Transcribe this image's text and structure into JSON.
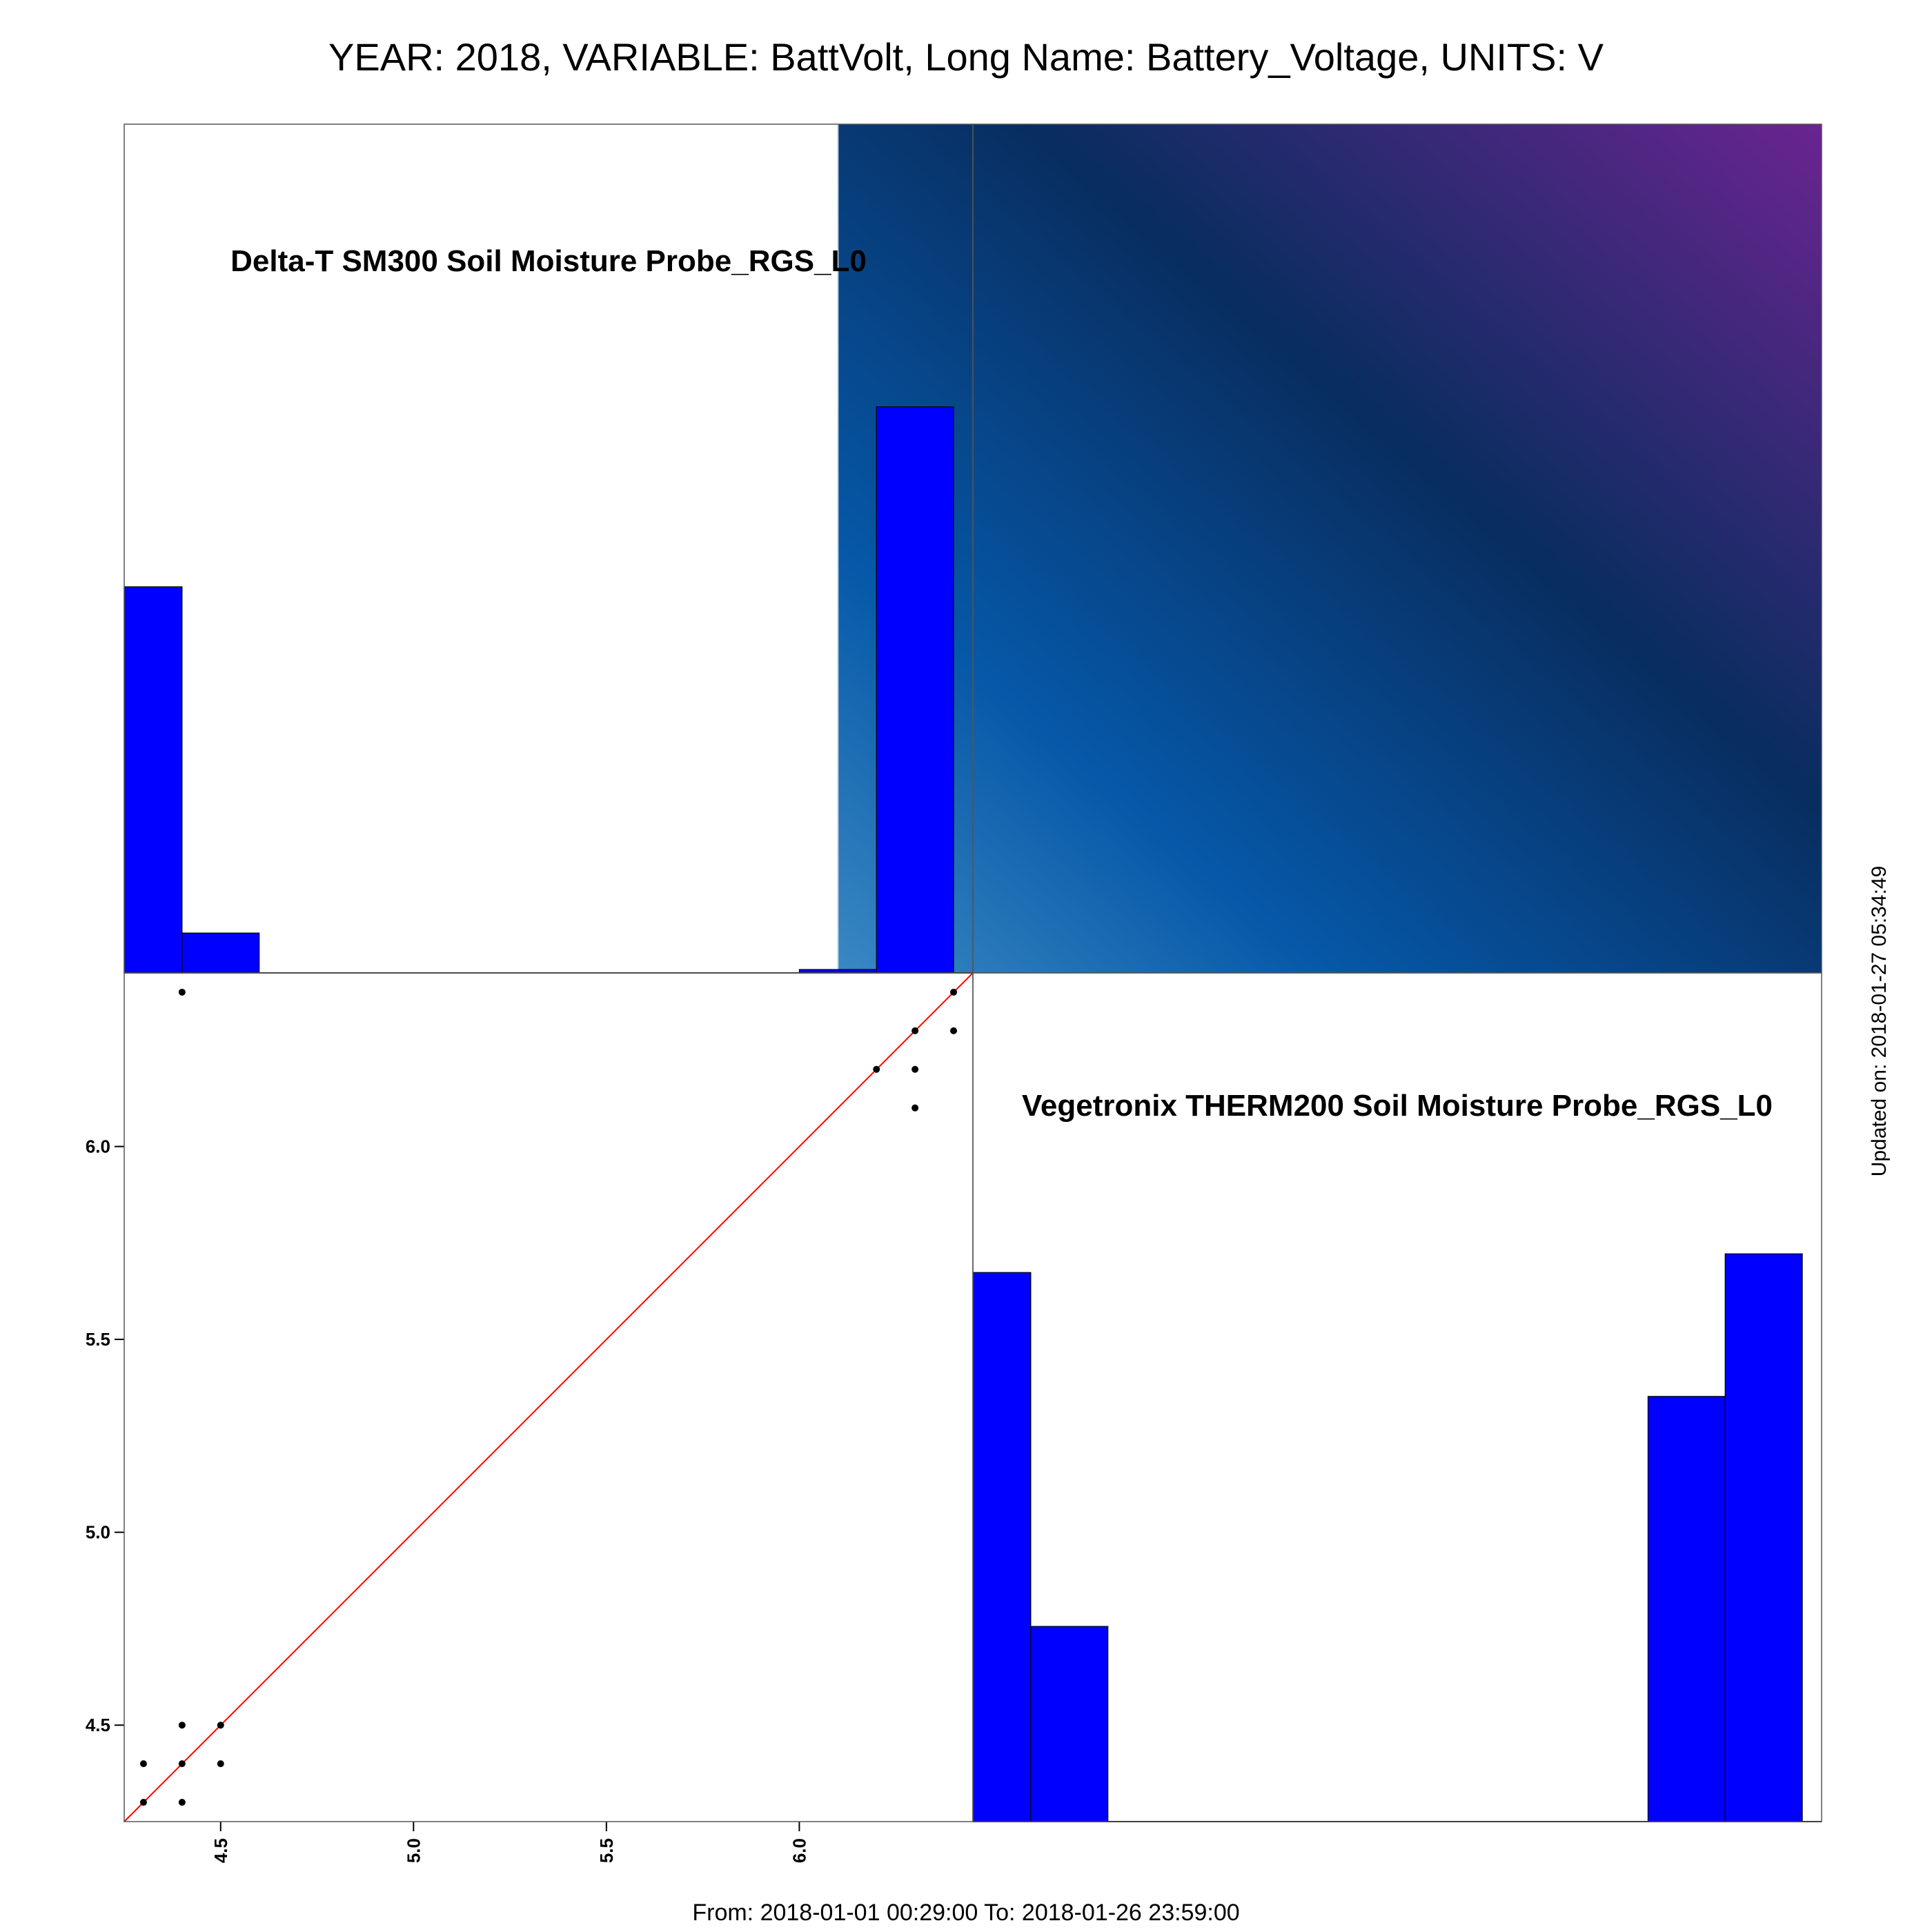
{
  "title": "YEAR: 2018, VARIABLE: BattVolt, Long Name: Battery_Voltage, UNITS: V",
  "footer": {
    "date_range": "From: 2018-01-01 00:29:00 To: 2018-01-26 23:59:00",
    "updated": "Updated on: 2018-01-27 05:34:49"
  },
  "colors": {
    "bar_fill": "#0000ff",
    "fit_line": "#ff0000",
    "points": "#000000",
    "corr_colormap": [
      "#3a88c3",
      "#0658a8",
      "#082d5f",
      "#2e2a6e",
      "#6a2490"
    ]
  },
  "chart_data": {
    "type": "scatter-matrix",
    "range": [
      4.25,
      6.45
    ],
    "diag_labels": [
      "Delta-T SM300 Soil Moisture Probe_RGS_L0",
      "Vegetronix THERM200 Soil Moisture Probe_RGS_L0"
    ],
    "histograms": [
      {
        "name": "Delta-T SM300 Soil Moisture Probe_RGS_L0",
        "bins": [
          {
            "x0": 4.2,
            "x1": 4.4,
            "count": 0.455
          },
          {
            "x0": 4.4,
            "x1": 4.6,
            "count": 0.047
          },
          {
            "x0": 6.0,
            "x1": 6.2,
            "count": 0.004
          },
          {
            "x0": 6.2,
            "x1": 6.4,
            "count": 0.667
          }
        ]
      },
      {
        "name": "Vegetronix THERM200 Soil Moisture Probe_RGS_L0",
        "bins": [
          {
            "x0": 4.2,
            "x1": 4.4,
            "count": 0.647
          },
          {
            "x0": 4.4,
            "x1": 4.6,
            "count": 0.23
          },
          {
            "x0": 6.0,
            "x1": 6.2,
            "count": 0.501
          },
          {
            "x0": 6.2,
            "x1": 6.4,
            "count": 0.669
          }
        ]
      }
    ],
    "scatter": {
      "x_ticks": [
        "4.5",
        "5.0",
        "5.5",
        "6.0"
      ],
      "y_ticks": [
        "4.5",
        "5.0",
        "5.5",
        "6.0"
      ],
      "points": [
        {
          "x": 4.3,
          "y": 4.3
        },
        {
          "x": 4.3,
          "y": 4.4
        },
        {
          "x": 4.4,
          "y": 4.3
        },
        {
          "x": 4.4,
          "y": 4.4
        },
        {
          "x": 4.4,
          "y": 4.5
        },
        {
          "x": 4.5,
          "y": 4.4
        },
        {
          "x": 4.5,
          "y": 4.5
        },
        {
          "x": 4.4,
          "y": 6.4
        },
        {
          "x": 6.2,
          "y": 6.2
        },
        {
          "x": 6.3,
          "y": 6.1
        },
        {
          "x": 6.3,
          "y": 6.2
        },
        {
          "x": 6.3,
          "y": 6.3
        },
        {
          "x": 6.4,
          "y": 6.3
        },
        {
          "x": 6.4,
          "y": 6.4
        }
      ],
      "fit_line": {
        "slope": 1,
        "intercept": 0
      }
    },
    "correlation_panel": {
      "column_split": 6.1
    }
  }
}
